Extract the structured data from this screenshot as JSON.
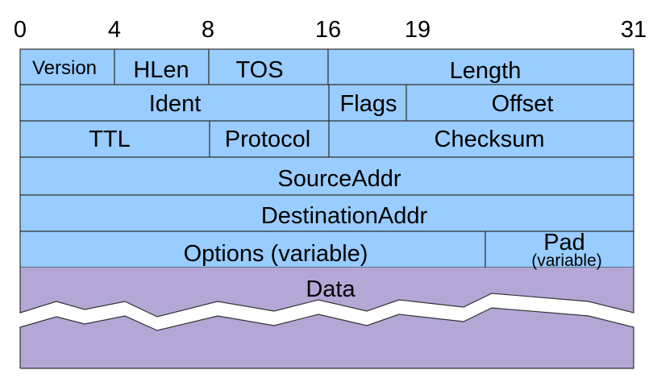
{
  "colors": {
    "header_fill": "#99ccff",
    "data_fill": "#b4a7d6",
    "line": "#333333"
  },
  "bit_positions": [
    "0",
    "4",
    "8",
    "16",
    "19",
    "31"
  ],
  "fields": {
    "version": "Version",
    "hlen": "HLen",
    "tos": "TOS",
    "length": "Length",
    "ident": "Ident",
    "flags": "Flags",
    "offset": "Offset",
    "ttl": "TTL",
    "protocol": "Protocol",
    "checksum": "Checksum",
    "source_addr": "SourceAddr",
    "destination_addr": "DestinationAddr",
    "options": "Options (variable)",
    "pad": "Pad",
    "pad_note": "(variable)",
    "data": "Data"
  }
}
